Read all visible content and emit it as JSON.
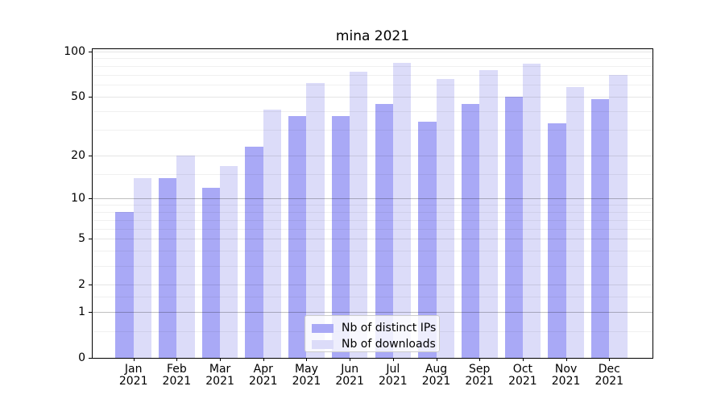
{
  "chart_data": {
    "type": "bar",
    "title": "mina 2021",
    "categories": [
      "Jan",
      "Feb",
      "Mar",
      "Apr",
      "May",
      "Jun",
      "Jul",
      "Aug",
      "Sep",
      "Oct",
      "Nov",
      "Dec"
    ],
    "x_year": "2021",
    "series": [
      {
        "name": "Nb of distinct IPs",
        "color": "#a9a9f6",
        "values": [
          8,
          14,
          12,
          23,
          37,
          37,
          45,
          34,
          45,
          50,
          33,
          48
        ]
      },
      {
        "name": "Nb of downloads",
        "color": "#dcdcf9",
        "values": [
          14,
          20,
          17,
          41,
          62,
          73,
          84,
          66,
          75,
          83,
          58,
          70
        ]
      }
    ],
    "yscale": "log1p",
    "ylim": [
      0,
      103
    ],
    "y_axis": {
      "tick_values": [
        100,
        50,
        20,
        10,
        5,
        2,
        1,
        0
      ],
      "tick_labels": [
        "100",
        "50",
        "20",
        "10",
        "5",
        "2",
        "1",
        "0"
      ],
      "decade_gridlines": [
        1,
        10
      ],
      "labeled_gridlines": [
        2,
        5,
        20,
        50,
        100
      ],
      "minor_gridlines": [
        0.5,
        1.5,
        3,
        4,
        6,
        7,
        8,
        9,
        15,
        30,
        40,
        60,
        70,
        80,
        90
      ]
    },
    "grid": true,
    "legend_position": "lower center",
    "colors": {
      "axis": "#000000",
      "grid_decade": "rgba(0,0,0,0.25)",
      "grid_labeled": "rgba(0,0,0,0.10)",
      "grid_minor": "rgba(0,0,0,0.06)"
    }
  }
}
